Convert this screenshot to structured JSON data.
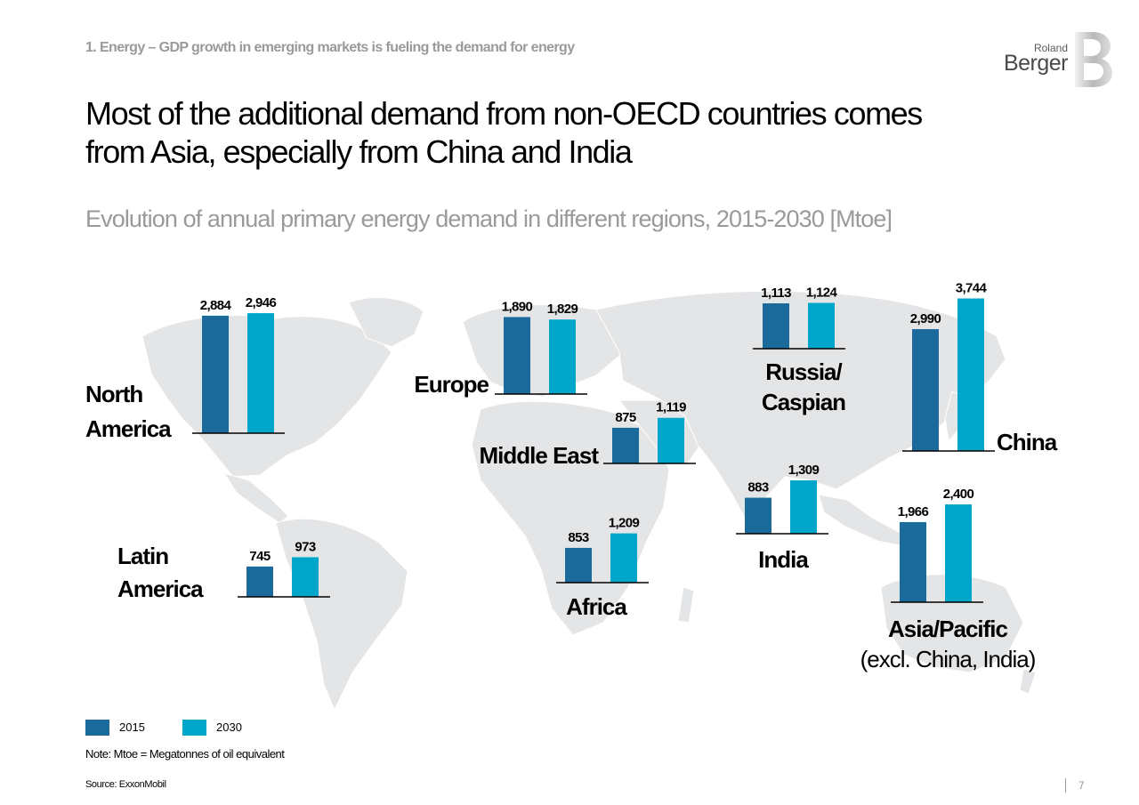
{
  "header": {
    "section_title": "1. Energy – GDP growth in emerging markets is fueling the demand for energy",
    "main_title_line1": "Most of the additional demand from non-OECD countries comes",
    "main_title_line2": "from Asia, especially from China and India",
    "subtitle": "Evolution of annual primary energy demand in different regions, 2015-2030 [Mtoe]"
  },
  "logo": {
    "line1": "Roland",
    "line2": "Berger"
  },
  "colors": {
    "series_2015": "#1a6a9c",
    "series_2030": "#00a6c9",
    "map": "#e4e5e7",
    "accent_gray": "#9a9a9a"
  },
  "chart_data": {
    "type": "bar",
    "unit": "Mtoe",
    "series_names": [
      "2015",
      "2030"
    ],
    "regions": [
      {
        "name": "North America",
        "label_lines": [
          "North",
          "America"
        ],
        "values": [
          2884,
          2946
        ],
        "value_labels": [
          "2,884",
          "2,946"
        ]
      },
      {
        "name": "Europe",
        "label_lines": [
          "Europe"
        ],
        "values": [
          1890,
          1829
        ],
        "value_labels": [
          "1,890",
          "1,829"
        ]
      },
      {
        "name": "Russia/Caspian",
        "label_lines": [
          "Russia/",
          "Caspian"
        ],
        "values": [
          1113,
          1124
        ],
        "value_labels": [
          "1,113",
          "1,124"
        ]
      },
      {
        "name": "China",
        "label_lines": [
          "China"
        ],
        "values": [
          2990,
          3744
        ],
        "value_labels": [
          "2,990",
          "3,744"
        ]
      },
      {
        "name": "Middle East",
        "label_lines": [
          "Middle East"
        ],
        "values": [
          875,
          1119
        ],
        "value_labels": [
          "875",
          "1,119"
        ]
      },
      {
        "name": "India",
        "label_lines": [
          "India"
        ],
        "values": [
          883,
          1309
        ],
        "value_labels": [
          "883",
          "1,309"
        ]
      },
      {
        "name": "Asia/Pacific (excl. China, India)",
        "label_lines": [
          "Asia/Pacific",
          "(excl. China, India)"
        ],
        "values": [
          1966,
          2400
        ],
        "value_labels": [
          "1,966",
          "2,400"
        ]
      },
      {
        "name": "Latin America",
        "label_lines": [
          "Latin",
          "America"
        ],
        "values": [
          745,
          973
        ],
        "value_labels": [
          "745",
          "973"
        ]
      },
      {
        "name": "Africa",
        "label_lines": [
          "Africa"
        ],
        "values": [
          853,
          1209
        ],
        "value_labels": [
          "853",
          "1,209"
        ]
      }
    ]
  },
  "legend": {
    "item_2015": "2015",
    "item_2030": "2030"
  },
  "footer": {
    "note": "Note: Mtoe = Megatonnes of oil equivalent",
    "source": "Source: ExxonMobil",
    "page_number": "7"
  }
}
